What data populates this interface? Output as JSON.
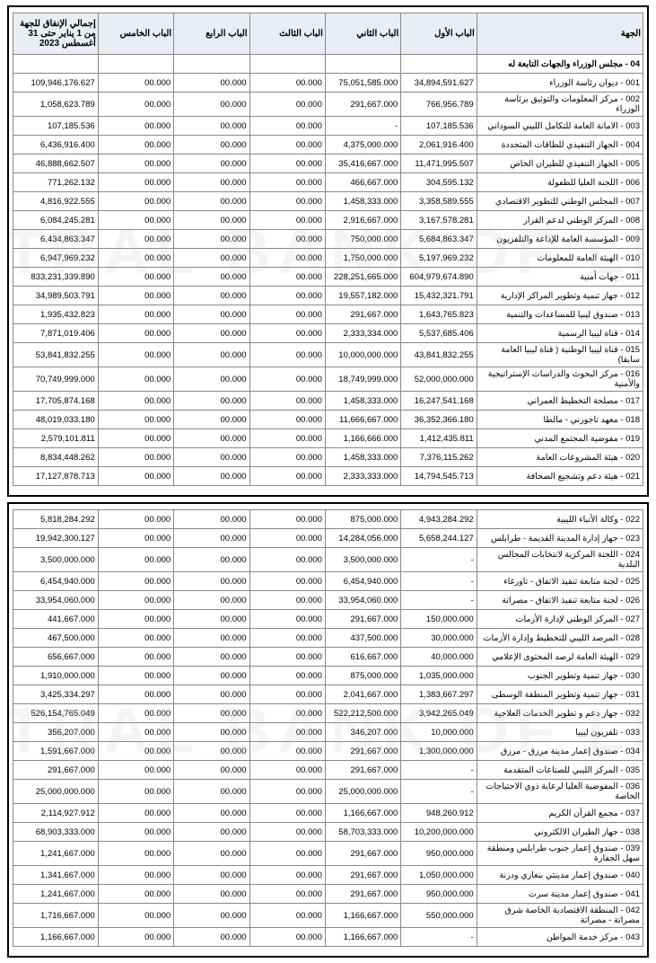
{
  "headers": {
    "entity": "الجهة",
    "bab1": "الباب الأول",
    "bab2": "الباب الثاني",
    "bab3": "الباب الثالث",
    "bab4": "الباب الرابع",
    "bab5": "الباب الخامس",
    "total": "إجمالي الإنفاق للجهة من 1 يناير حتى 31 أغسطس 2023"
  },
  "section_title": "04 - مجلس الوزراء والجهات التابعة له",
  "watermark": "CENTRAL BANK OF LIBYA",
  "rows1": [
    {
      "entity": "001 - ديوان رئاسة الوزراء",
      "b1": "34,894,591.627",
      "b2": "75,051,585.000",
      "b3": "00.000",
      "b4": "00.000",
      "b5": "00.000",
      "t": "109,946,176.627"
    },
    {
      "entity": "002 - مركز المعلومات والتوثيق برئاسة الوزراء",
      "b1": "766,956.789",
      "b2": "291,667.000",
      "b3": "00.000",
      "b4": "00.000",
      "b5": "00.000",
      "t": "1,058,623.789"
    },
    {
      "entity": "003 - الامانة العامة للتكامل الليبي السوداني",
      "b1": "107,185.536",
      "b2": "-",
      "b3": "00.000",
      "b4": "00.000",
      "b5": "00.000",
      "t": "107,185.536"
    },
    {
      "entity": "004 - الجهاز التنفيذي للطاقات المتجددة",
      "b1": "2,061,916.400",
      "b2": "4,375,000.000",
      "b3": "00.000",
      "b4": "00.000",
      "b5": "00.000",
      "t": "6,436,916.400"
    },
    {
      "entity": "005 - الجهاز التنفيذي للطيران الخاص",
      "b1": "11,471,995.507",
      "b2": "35,416,667.000",
      "b3": "00.000",
      "b4": "00.000",
      "b5": "00.000",
      "t": "46,888,662.507"
    },
    {
      "entity": "006 - اللجنة العليا للطفولة",
      "b1": "304,595.132",
      "b2": "466,667.000",
      "b3": "00.000",
      "b4": "00.000",
      "b5": "00.000",
      "t": "771,262.132"
    },
    {
      "entity": "007 - المجلس الوطني للتطوير الاقتصادي",
      "b1": "3,358,589.555",
      "b2": "1,458,333.000",
      "b3": "00.000",
      "b4": "00.000",
      "b5": "00.000",
      "t": "4,816,922.555"
    },
    {
      "entity": "008 - المركز الوطني لدعم القرار",
      "b1": "3,167,578.281",
      "b2": "2,916,667.000",
      "b3": "00.000",
      "b4": "00.000",
      "b5": "00.000",
      "t": "6,084,245.281"
    },
    {
      "entity": "009 - المؤسسة العامة للإذاعة والتلفزيون",
      "b1": "5,684,863.347",
      "b2": "750,000.000",
      "b3": "00.000",
      "b4": "00.000",
      "b5": "00.000",
      "t": "6,434,863.347"
    },
    {
      "entity": "010 - الهيئة العامة للمعلومات",
      "b1": "5,197,969.232",
      "b2": "1,750,000.000",
      "b3": "00.000",
      "b4": "00.000",
      "b5": "00.000",
      "t": "6,947,969.232"
    },
    {
      "entity": "011 - جهات أمنية",
      "b1": "604,979,674.890",
      "b2": "228,251,665.000",
      "b3": "00.000",
      "b4": "00.000",
      "b5": "00.000",
      "t": "833,231,339.890"
    },
    {
      "entity": "012 - جهاز تنمية وتطوير المراكز الإدارية",
      "b1": "15,432,321.791",
      "b2": "19,557,182.000",
      "b3": "00.000",
      "b4": "00.000",
      "b5": "00.000",
      "t": "34,989,503.791"
    },
    {
      "entity": "013 - صندوق ليبيا للمساعدات والتنمية",
      "b1": "1,643,765.823",
      "b2": "291,667.000",
      "b3": "00.000",
      "b4": "00.000",
      "b5": "00.000",
      "t": "1,935,432.823"
    },
    {
      "entity": "014 - قناة ليبيا الرسمية",
      "b1": "5,537,685.406",
      "b2": "2,333,334.000",
      "b3": "00.000",
      "b4": "00.000",
      "b5": "00.000",
      "t": "7,871,019.406"
    },
    {
      "entity": "015 - قناة ليبيا الوطنية ( قناة ليبيا العامة سابقا)",
      "b1": "43,841,832.255",
      "b2": "10,000,000.000",
      "b3": "00.000",
      "b4": "00.000",
      "b5": "00.000",
      "t": "53,841,832.255"
    },
    {
      "entity": "016 - مركز البحوث والدراسات الإستراتيجية والأمنية",
      "b1": "52,000,000.000",
      "b2": "18,749,999.000",
      "b3": "00.000",
      "b4": "00.000",
      "b5": "00.000",
      "t": "70,749,999.000"
    },
    {
      "entity": "017 - مصلحة التخطيط العمراني",
      "b1": "16,247,541.168",
      "b2": "1,458,333.000",
      "b3": "00.000",
      "b4": "00.000",
      "b5": "00.000",
      "t": "17,705,874.168"
    },
    {
      "entity": "018 - معهد تاجورني - مالطا",
      "b1": "36,352,366.180",
      "b2": "11,666,667.000",
      "b3": "00.000",
      "b4": "00.000",
      "b5": "00.000",
      "t": "48,019,033.180"
    },
    {
      "entity": "019 - مفوضية المجتمع المدني",
      "b1": "1,412,435.811",
      "b2": "1,166,666.000",
      "b3": "00.000",
      "b4": "00.000",
      "b5": "00.000",
      "t": "2,579,101.811"
    },
    {
      "entity": "020 - هيئة المشروعات العامة",
      "b1": "7,376,115.262",
      "b2": "1,458,333.000",
      "b3": "00.000",
      "b4": "00.000",
      "b5": "00.000",
      "t": "8,834,448.262"
    },
    {
      "entity": "021 - هيئة دعم وتشجيع الصحافة",
      "b1": "14,794,545.713",
      "b2": "2,333,333.000",
      "b3": "00.000",
      "b4": "00.000",
      "b5": "00.000",
      "t": "17,127,878.713"
    }
  ],
  "rows2": [
    {
      "entity": "022 - وكالة الأنباء الليبية",
      "b1": "4,943,284.292",
      "b2": "875,000.000",
      "b3": "00.000",
      "b4": "00.000",
      "b5": "00.000",
      "t": "5,818,284.292"
    },
    {
      "entity": "023 - جهاز إدارة المدينة القديمة - طرابلس",
      "b1": "5,658,244.127",
      "b2": "14,284,056.000",
      "b3": "00.000",
      "b4": "00.000",
      "b5": "00.000",
      "t": "19,942,300.127"
    },
    {
      "entity": "024 - اللجنة المركزية لانتخابات المجالس البلدية",
      "b1": "-",
      "b2": "3,500,000.000",
      "b3": "00.000",
      "b4": "00.000",
      "b5": "00.000",
      "t": "3,500,000.000"
    },
    {
      "entity": "025 - لجنة متابعة تنفيذ الاتفاق - تاورغاء",
      "b1": "-",
      "b2": "6,454,940.000",
      "b3": "00.000",
      "b4": "00.000",
      "b5": "00.000",
      "t": "6,454,940.000"
    },
    {
      "entity": "026 - لجنة متابعة تنفيذ الاتفاق - مصراتة",
      "b1": "-",
      "b2": "33,954,060.000",
      "b3": "00.000",
      "b4": "00.000",
      "b5": "00.000",
      "t": "33,954,060.000"
    },
    {
      "entity": "027 - المركز الوطني لإدارة الأزمات",
      "b1": "150,000.000",
      "b2": "291,667.000",
      "b3": "00.000",
      "b4": "00.000",
      "b5": "00.000",
      "t": "441,667.000"
    },
    {
      "entity": "028 - المرصد الليبي للتخطيط وإدارة الأزمات",
      "b1": "30,000.000",
      "b2": "437,500.000",
      "b3": "00.000",
      "b4": "00.000",
      "b5": "00.000",
      "t": "467,500.000"
    },
    {
      "entity": "029 - الهيئة العامة لرصد المحتوى الإعلامي",
      "b1": "40,000.000",
      "b2": "616,667.000",
      "b3": "00.000",
      "b4": "00.000",
      "b5": "00.000",
      "t": "656,667.000"
    },
    {
      "entity": "030 - جهاز تنمية وتطوير الجنوب",
      "b1": "1,035,000.000",
      "b2": "875,000.000",
      "b3": "00.000",
      "b4": "00.000",
      "b5": "00.000",
      "t": "1,910,000.000"
    },
    {
      "entity": "031 - جهاز تنمية وتطوير المنطقة الوسطى",
      "b1": "1,383,667.297",
      "b2": "2,041,667.000",
      "b3": "00.000",
      "b4": "00.000",
      "b5": "00.000",
      "t": "3,425,334.297"
    },
    {
      "entity": "032 - جهاز دعم و تطوير الخدمات العلاجية",
      "b1": "3,942,265.049",
      "b2": "522,212,500.000",
      "b3": "00.000",
      "b4": "00.000",
      "b5": "00.000",
      "t": "526,154,765.049"
    },
    {
      "entity": "033 - تلفزيون ليبيا",
      "b1": "10,000.000",
      "b2": "346,207.000",
      "b3": "00.000",
      "b4": "00.000",
      "b5": "00.000",
      "t": "356,207.000"
    },
    {
      "entity": "034 - صندوق إعمار مدينة مرزق - مرزق",
      "b1": "1,300,000.000",
      "b2": "291,667.000",
      "b3": "00.000",
      "b4": "00.000",
      "b5": "00.000",
      "t": "1,591,667.000"
    },
    {
      "entity": "035 - المركز الليبي للصناعات المتقدمة",
      "b1": "-",
      "b2": "291,667.000",
      "b3": "00.000",
      "b4": "00.000",
      "b5": "00.000",
      "t": "291,667.000"
    },
    {
      "entity": "036 - المفوضية العليا لرعاية ذوي الاحتياجات الخاصة",
      "b1": "-",
      "b2": "25,000,000.000",
      "b3": "00.000",
      "b4": "00.000",
      "b5": "00.000",
      "t": "25,000,000.000"
    },
    {
      "entity": "037 - مجمع القرآن الكريم",
      "b1": "948,260.912",
      "b2": "1,166,667.000",
      "b3": "00.000",
      "b4": "00.000",
      "b5": "00.000",
      "t": "2,114,927.912"
    },
    {
      "entity": "038 - جهاز الطيران الالكتروني",
      "b1": "10,200,000.000",
      "b2": "58,703,333.000",
      "b3": "00.000",
      "b4": "00.000",
      "b5": "00.000",
      "t": "68,903,333.000"
    },
    {
      "entity": "039 - صندوق إعمار جنوب طرابلس ومنطقة سهل الجفارة",
      "b1": "950,000.000",
      "b2": "291,667.000",
      "b3": "00.000",
      "b4": "00.000",
      "b5": "00.000",
      "t": "1,241,667.000"
    },
    {
      "entity": "040 - صندوق إعمار مدينتي بنغازي ودرنة",
      "b1": "1,050,000.000",
      "b2": "291,667.000",
      "b3": "00.000",
      "b4": "00.000",
      "b5": "00.000",
      "t": "1,341,667.000"
    },
    {
      "entity": "041 - صندوق إعمار مدينة سرت",
      "b1": "950,000.000",
      "b2": "291,667.000",
      "b3": "00.000",
      "b4": "00.000",
      "b5": "00.000",
      "t": "1,241,667.000"
    },
    {
      "entity": "042 - المنطقة الاقتصادية الخاصة شرق مصراتة - مصراتة",
      "b1": "550,000.000",
      "b2": "1,166,667.000",
      "b3": "00.000",
      "b4": "00.000",
      "b5": "00.000",
      "t": "1,716,667.000"
    },
    {
      "entity": "043 - مركز خدمة المواطن",
      "b1": "-",
      "b2": "1,166,667.000",
      "b3": "00.000",
      "b4": "00.000",
      "b5": "00.000",
      "t": "1,166,667.000"
    }
  ]
}
